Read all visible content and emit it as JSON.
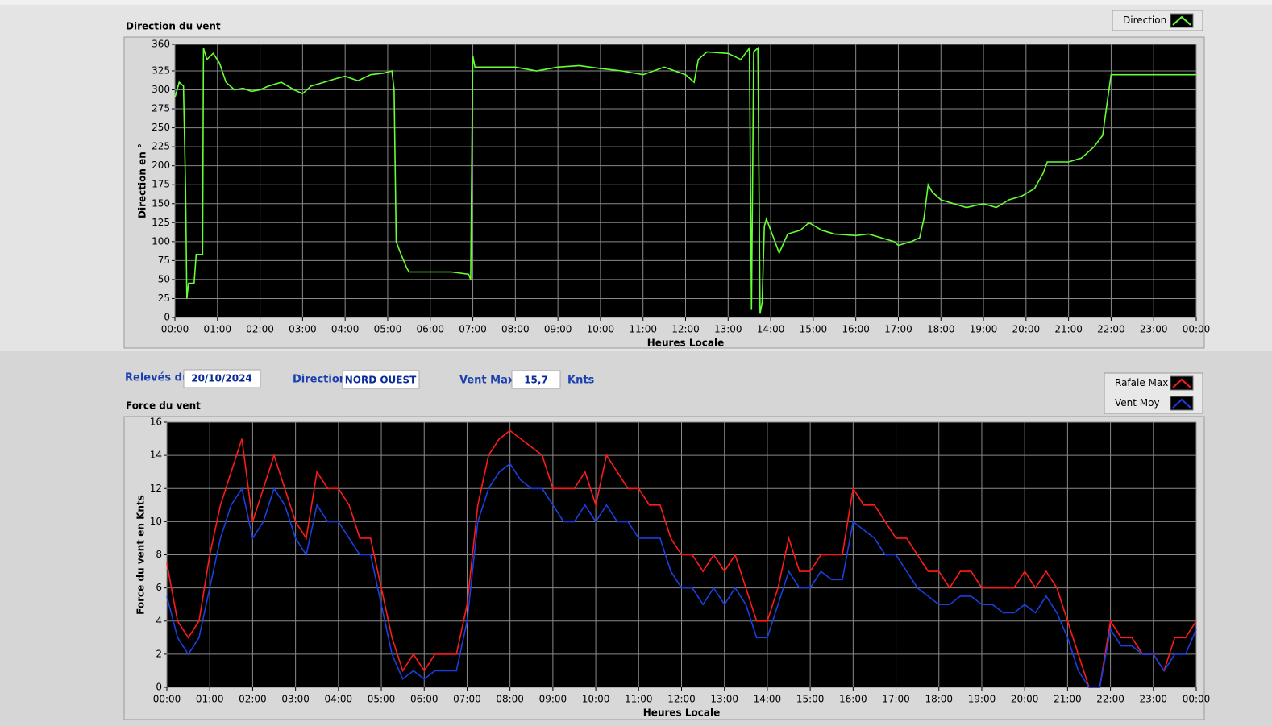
{
  "chart_data": [
    {
      "type": "line",
      "title": "Direction du vent",
      "xlabel": "Heures Locale",
      "ylabel": "Direction en °",
      "x": [
        0,
        0.1,
        0.2,
        0.25,
        0.28,
        0.32,
        0.45,
        0.5,
        0.65,
        0.67,
        0.75,
        0.9,
        1.05,
        1.2,
        1.4,
        1.6,
        1.8,
        2.0,
        2.2,
        2.5,
        2.8,
        3.0,
        3.2,
        3.5,
        3.8,
        4.0,
        4.3,
        4.6,
        4.9,
        5.1,
        5.15,
        5.2,
        5.3,
        5.45,
        5.5,
        6.0,
        6.5,
        6.9,
        6.95,
        7.0,
        7.05,
        7.5,
        8.0,
        8.5,
        9.0,
        9.5,
        10.0,
        10.5,
        11.0,
        11.5,
        12.0,
        12.2,
        12.3,
        12.5,
        13.0,
        13.3,
        13.5,
        13.55,
        13.6,
        13.7,
        13.75,
        13.8,
        13.85,
        13.9,
        14.1,
        14.2,
        14.4,
        14.7,
        14.9,
        15.2,
        15.5,
        16.0,
        16.3,
        16.6,
        16.9,
        17.0,
        17.3,
        17.5,
        17.6,
        17.7,
        17.8,
        18.0,
        18.3,
        18.6,
        19.0,
        19.3,
        19.6,
        19.9,
        20.2,
        20.4,
        20.5,
        21.0,
        21.3,
        21.6,
        21.8,
        21.9,
        22.0,
        22.5,
        23.0,
        24.0
      ],
      "series": [
        {
          "name": "Direction",
          "color": "#66ff33",
          "values": [
            290,
            310,
            305,
            170,
            25,
            45,
            45,
            83,
            83,
            355,
            340,
            348,
            335,
            310,
            300,
            302,
            298,
            300,
            305,
            310,
            300,
            295,
            305,
            310,
            315,
            318,
            312,
            320,
            322,
            325,
            300,
            100,
            85,
            65,
            60,
            60,
            60,
            57,
            50,
            345,
            330,
            330,
            330,
            325,
            330,
            332,
            328,
            325,
            320,
            330,
            320,
            310,
            340,
            350,
            348,
            340,
            355,
            10,
            350,
            355,
            5,
            20,
            120,
            130,
            100,
            85,
            110,
            115,
            125,
            115,
            110,
            108,
            110,
            105,
            100,
            95,
            100,
            105,
            130,
            175,
            165,
            155,
            150,
            145,
            150,
            145,
            155,
            160,
            170,
            190,
            205,
            205,
            210,
            225,
            240,
            280,
            320,
            320,
            320,
            320
          ]
        }
      ],
      "xlim": [
        0,
        24
      ],
      "xticks": [
        {
          "value": 0,
          "label": "00:00"
        },
        {
          "value": 1,
          "label": "01:00"
        },
        {
          "value": 2,
          "label": "02:00"
        },
        {
          "value": 3,
          "label": "03:00"
        },
        {
          "value": 4,
          "label": "04:00"
        },
        {
          "value": 5,
          "label": "05:00"
        },
        {
          "value": 6,
          "label": "06:00"
        },
        {
          "value": 7,
          "label": "07:00"
        },
        {
          "value": 8,
          "label": "08:00"
        },
        {
          "value": 9,
          "label": "09:00"
        },
        {
          "value": 10,
          "label": "10:00"
        },
        {
          "value": 11,
          "label": "11:00"
        },
        {
          "value": 12,
          "label": "12:00"
        },
        {
          "value": 13,
          "label": "13:00"
        },
        {
          "value": 14,
          "label": "14:00"
        },
        {
          "value": 15,
          "label": "15:00"
        },
        {
          "value": 16,
          "label": "16:00"
        },
        {
          "value": 17,
          "label": "17:00"
        },
        {
          "value": 18,
          "label": "18:00"
        },
        {
          "value": 19,
          "label": "19:00"
        },
        {
          "value": 20,
          "label": "20:00"
        },
        {
          "value": 21,
          "label": "21:00"
        },
        {
          "value": 22,
          "label": "22:00"
        },
        {
          "value": 23,
          "label": "23:00"
        },
        {
          "value": 24,
          "label": "00:00"
        }
      ],
      "ylim": [
        0,
        360
      ],
      "yticks": [
        0,
        25,
        50,
        75,
        100,
        125,
        150,
        175,
        200,
        225,
        250,
        275,
        300,
        325,
        360
      ],
      "grid": true
    },
    {
      "type": "line",
      "title": "Force du vent",
      "xlabel": "Heures Locale",
      "ylabel": "Force du vent en Knts",
      "x": [
        0,
        0.25,
        0.5,
        0.75,
        1,
        1.25,
        1.5,
        1.75,
        2,
        2.25,
        2.5,
        2.75,
        3,
        3.25,
        3.5,
        3.75,
        4,
        4.25,
        4.5,
        4.75,
        5,
        5.25,
        5.5,
        5.75,
        6,
        6.25,
        6.5,
        6.75,
        7,
        7.25,
        7.5,
        7.75,
        8,
        8.25,
        8.5,
        8.75,
        9,
        9.25,
        9.5,
        9.75,
        10,
        10.25,
        10.5,
        10.75,
        11,
        11.25,
        11.5,
        11.75,
        12,
        12.25,
        12.5,
        12.75,
        13,
        13.25,
        13.5,
        13.75,
        14,
        14.25,
        14.5,
        14.75,
        15,
        15.25,
        15.5,
        15.75,
        16,
        16.25,
        16.5,
        16.75,
        17,
        17.25,
        17.5,
        17.75,
        18,
        18.25,
        18.5,
        18.75,
        19,
        19.25,
        19.5,
        19.75,
        20,
        20.25,
        20.5,
        20.75,
        21,
        21.25,
        21.5,
        21.75,
        22,
        22.25,
        22.5,
        22.75,
        23,
        23.25,
        23.5,
        23.75,
        24
      ],
      "series": [
        {
          "name": "Rafale Max",
          "color": "#ff1a1a",
          "values": [
            7.5,
            4,
            3,
            4,
            8,
            11,
            13,
            15,
            10,
            12,
            14,
            12,
            10,
            9,
            13,
            12,
            12,
            11,
            9,
            9,
            6,
            3,
            1,
            2,
            1,
            2,
            2,
            2,
            5,
            11,
            14,
            15,
            15.5,
            15,
            14.5,
            14,
            12,
            12,
            12,
            13,
            11,
            14,
            13,
            12,
            12,
            11,
            11,
            9,
            8,
            8,
            7,
            8,
            7,
            8,
            6,
            4,
            4,
            6,
            9,
            7,
            7,
            8,
            8,
            8,
            12,
            11,
            11,
            10,
            9,
            9,
            8,
            7,
            7,
            6,
            7,
            7,
            6,
            6,
            6,
            6,
            7,
            6,
            7,
            6,
            4,
            2,
            0,
            0,
            4,
            3,
            3,
            2,
            2,
            1,
            3,
            3,
            4
          ]
        },
        {
          "name": "Vent Moy",
          "color": "#1a3fe0",
          "values": [
            5.5,
            3,
            2,
            3,
            6,
            9,
            11,
            12,
            9,
            10,
            12,
            11,
            9,
            8,
            11,
            10,
            10,
            9,
            8,
            8,
            5,
            2,
            0.5,
            1,
            0.5,
            1,
            1,
            1,
            4,
            10,
            12,
            13,
            13.5,
            12.5,
            12,
            12,
            11,
            10,
            10,
            11,
            10,
            11,
            10,
            10,
            9,
            9,
            9,
            7,
            6,
            6,
            5,
            6,
            5,
            6,
            5,
            3,
            3,
            5,
            7,
            6,
            6,
            7,
            6.5,
            6.5,
            10,
            9.5,
            9,
            8,
            8,
            7,
            6,
            5.5,
            5,
            5,
            5.5,
            5.5,
            5,
            5,
            4.5,
            4.5,
            5,
            4.5,
            5.5,
            4.5,
            3,
            1,
            0,
            0,
            3.5,
            2.5,
            2.5,
            2,
            2,
            1,
            2,
            2,
            3.5
          ]
        }
      ],
      "xlim": [
        0,
        24
      ],
      "xticks": [
        {
          "value": 0,
          "label": "00:00"
        },
        {
          "value": 1,
          "label": "01:00"
        },
        {
          "value": 2,
          "label": "02:00"
        },
        {
          "value": 3,
          "label": "03:00"
        },
        {
          "value": 4,
          "label": "04:00"
        },
        {
          "value": 5,
          "label": "05:00"
        },
        {
          "value": 6,
          "label": "06:00"
        },
        {
          "value": 7,
          "label": "07:00"
        },
        {
          "value": 8,
          "label": "08:00"
        },
        {
          "value": 9,
          "label": "09:00"
        },
        {
          "value": 10,
          "label": "10:00"
        },
        {
          "value": 11,
          "label": "11:00"
        },
        {
          "value": 12,
          "label": "12:00"
        },
        {
          "value": 13,
          "label": "13:00"
        },
        {
          "value": 14,
          "label": "14:00"
        },
        {
          "value": 15,
          "label": "15:00"
        },
        {
          "value": 16,
          "label": "16:00"
        },
        {
          "value": 17,
          "label": "17:00"
        },
        {
          "value": 18,
          "label": "18:00"
        },
        {
          "value": 19,
          "label": "19:00"
        },
        {
          "value": 20,
          "label": "20:00"
        },
        {
          "value": 21,
          "label": "21:00"
        },
        {
          "value": 22,
          "label": "22:00"
        },
        {
          "value": 23,
          "label": "23:00"
        },
        {
          "value": 24,
          "label": "00:00"
        }
      ],
      "ylim": [
        0,
        16
      ],
      "yticks": [
        0,
        2,
        4,
        6,
        8,
        10,
        12,
        14,
        16
      ],
      "grid": true
    }
  ],
  "controls": {
    "date_label": "Relevés du",
    "date": "20/10/2024",
    "direction_label": "Direction",
    "direction": "NORD OUEST",
    "vent_max_label": "Vent Max",
    "vent_max": "15,7",
    "unit": "Knts"
  }
}
